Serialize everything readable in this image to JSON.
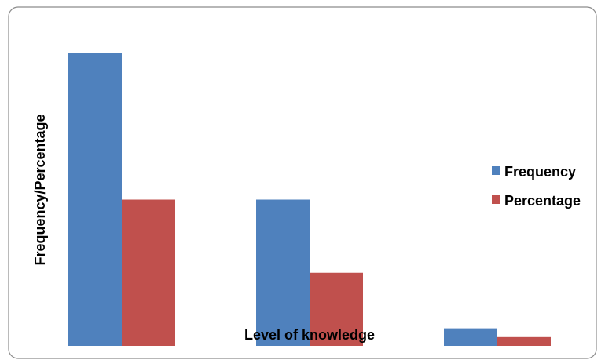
{
  "chart_data": {
    "type": "bar",
    "title": "",
    "xlabel": "Level of knowledge",
    "ylabel": "Frequency/Percentage",
    "categories": [
      "",
      "",
      ""
    ],
    "series": [
      {
        "name": "Frequency",
        "values": [
          100,
          50,
          6
        ],
        "color": "#4F81BD"
      },
      {
        "name": "Percentage",
        "values": [
          50,
          25,
          3
        ],
        "color": "#C0504D"
      }
    ],
    "ylim": [
      0,
      100
    ],
    "grid": false,
    "legend_position": "right"
  }
}
